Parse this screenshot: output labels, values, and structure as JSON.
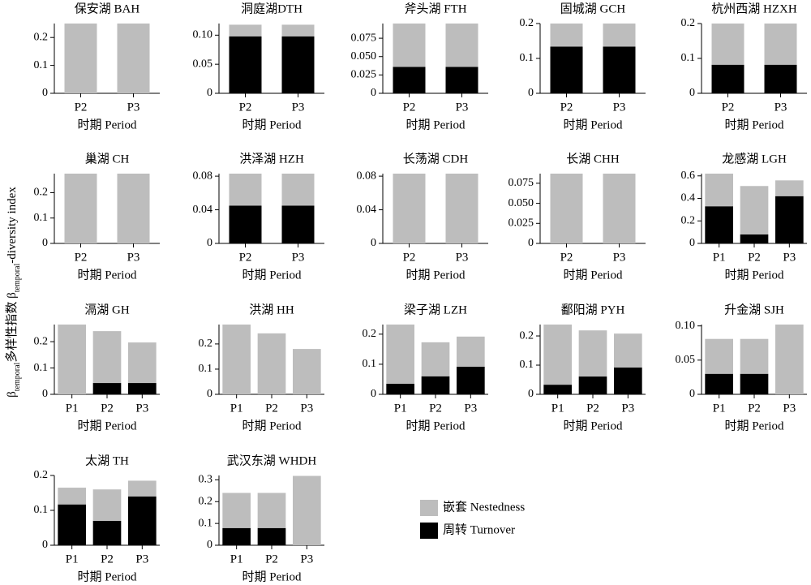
{
  "ylabel": [
    "β",
    "temporal",
    "多样性指数 β",
    "temporal",
    "-diversity index"
  ],
  "legend": [
    {
      "name": "嵌套 Nestedness",
      "color": "#bdbdbd"
    },
    {
      "name": "周转 Turnover",
      "color": "#000000"
    }
  ],
  "chart_data": [
    {
      "type": "bar",
      "title": "保安湖 BAH",
      "xlabel": "时期 Period",
      "categories": [
        "P2",
        "P3"
      ],
      "series": [
        {
          "values": [
            0.25,
            0.25
          ]
        },
        {
          "values": [
            0,
            0
          ]
        }
      ],
      "ylim": [
        0,
        0.25
      ],
      "yticks": [
        0,
        0.1,
        0.2
      ]
    },
    {
      "type": "bar",
      "title": "洞庭湖DTH",
      "xlabel": "时期 Period",
      "categories": [
        "P2",
        "P3"
      ],
      "series": [
        {
          "values": [
            0.02,
            0.02
          ]
        },
        {
          "values": [
            0.098,
            0.098
          ]
        }
      ],
      "ylim": [
        0,
        0.12
      ],
      "yticks": [
        0,
        0.05,
        {
          "value": 0.1,
          "label": "0.10"
        }
      ]
    },
    {
      "type": "bar",
      "title": "斧头湖 FTH",
      "xlabel": "时期 Period",
      "categories": [
        "P2",
        "P3"
      ],
      "series": [
        {
          "values": [
            0.059,
            0.059
          ]
        },
        {
          "values": [
            0.036,
            0.036
          ]
        }
      ],
      "ylim": [
        0,
        0.095
      ],
      "yticks": [
        0,
        0.025,
        {
          "value": 0.05,
          "label": "0.050"
        },
        0.075
      ]
    },
    {
      "type": "bar",
      "title": "固城湖 GCH",
      "xlabel": "时期 Period",
      "categories": [
        "P2",
        "P3"
      ],
      "series": [
        {
          "values": [
            0.066,
            0.066
          ]
        },
        {
          "values": [
            0.134,
            0.134
          ]
        }
      ],
      "ylim": [
        0,
        0.2
      ],
      "yticks": [
        0,
        0.1,
        0.2
      ]
    },
    {
      "type": "bar",
      "title": "杭州西湖 HZXH",
      "xlabel": "时期 Period",
      "categories": [
        "P2",
        "P3"
      ],
      "series": [
        {
          "values": [
            0.118,
            0.118
          ]
        },
        {
          "values": [
            0.082,
            0.082
          ]
        }
      ],
      "ylim": [
        0,
        0.2
      ],
      "yticks": [
        0,
        0.1,
        0.2
      ]
    },
    {
      "type": "bar",
      "title": "巢湖 CH",
      "xlabel": "时期 Period",
      "categories": [
        "P2",
        "P3"
      ],
      "series": [
        {
          "values": [
            0.275,
            0.275
          ]
        },
        {
          "values": [
            0,
            0
          ]
        }
      ],
      "ylim": [
        0,
        0.275
      ],
      "yticks": [
        0,
        0.1,
        0.2
      ]
    },
    {
      "type": "bar",
      "title": "洪泽湖 HZH",
      "xlabel": "时期 Period",
      "categories": [
        "P2",
        "P3"
      ],
      "series": [
        {
          "values": [
            0.038,
            0.038
          ]
        },
        {
          "values": [
            0.045,
            0.045
          ]
        }
      ],
      "ylim": [
        0,
        0.083
      ],
      "yticks": [
        0,
        0.04,
        0.08
      ]
    },
    {
      "type": "bar",
      "title": "长荡湖 CDH",
      "xlabel": "时期 Period",
      "categories": [
        "P2",
        "P3"
      ],
      "series": [
        {
          "values": [
            0.083,
            0.083
          ]
        },
        {
          "values": [
            0,
            0
          ]
        }
      ],
      "ylim": [
        0,
        0.083
      ],
      "yticks": [
        0,
        0.04,
        0.08
      ]
    },
    {
      "type": "bar",
      "title": "长湖 CHH",
      "xlabel": "时期 Period",
      "categories": [
        "P2",
        "P3"
      ],
      "series": [
        {
          "values": [
            0.087,
            0.087
          ]
        },
        {
          "values": [
            0,
            0
          ]
        }
      ],
      "ylim": [
        0,
        0.087
      ],
      "yticks": [
        0,
        0.025,
        {
          "value": 0.05,
          "label": "0.050"
        },
        0.075
      ]
    },
    {
      "type": "bar",
      "title": "龙感湖 LGH",
      "xlabel": "时期 Period",
      "categories": [
        "P1",
        "P2",
        "P3"
      ],
      "series": [
        {
          "values": [
            0.29,
            0.43,
            0.14
          ]
        },
        {
          "values": [
            0.33,
            0.08,
            0.42
          ]
        }
      ],
      "ylim": [
        0,
        0.62
      ],
      "yticks": [
        0,
        0.2,
        0.4,
        0.6
      ]
    },
    {
      "type": "bar",
      "title": "滆湖 GH",
      "xlabel": "时期 Period",
      "categories": [
        "P1",
        "P2",
        "P3"
      ],
      "series": [
        {
          "values": [
            0.265,
            0.197,
            0.154
          ]
        },
        {
          "values": [
            0,
            0.043,
            0.043
          ]
        }
      ],
      "ylim": [
        0,
        0.265
      ],
      "yticks": [
        0,
        0.1,
        0.2
      ]
    },
    {
      "type": "bar",
      "title": "洪湖 HH",
      "xlabel": "时期 Period",
      "categories": [
        "P1",
        "P2",
        "P3"
      ],
      "series": [
        {
          "values": [
            0.277,
            0.242,
            0.18
          ]
        },
        {
          "values": [
            0,
            0,
            0
          ]
        }
      ],
      "ylim": [
        0,
        0.277
      ],
      "yticks": [
        0,
        0.1,
        0.2
      ]
    },
    {
      "type": "bar",
      "title": "梁子湖 LZH",
      "xlabel": "时期 Period",
      "categories": [
        "P1",
        "P2",
        "P3"
      ],
      "series": [
        {
          "values": [
            0.197,
            0.113,
            0.1
          ]
        },
        {
          "values": [
            0.035,
            0.06,
            0.092
          ]
        }
      ],
      "ylim": [
        0,
        0.232
      ],
      "yticks": [
        0,
        0.1,
        0.2
      ]
    },
    {
      "type": "bar",
      "title": "鄱阳湖 PYH",
      "xlabel": "时期 Period",
      "categories": [
        "P1",
        "P2",
        "P3"
      ],
      "series": [
        {
          "values": [
            0.206,
            0.158,
            0.116
          ]
        },
        {
          "values": [
            0.033,
            0.061,
            0.092
          ]
        }
      ],
      "ylim": [
        0,
        0.239
      ],
      "yticks": [
        0,
        0.1,
        0.2
      ]
    },
    {
      "type": "bar",
      "title": "升金湖 SJH",
      "xlabel": "时期 Period",
      "categories": [
        "P1",
        "P2",
        "P3"
      ],
      "series": [
        {
          "values": [
            0.051,
            0.051,
            0.102
          ]
        },
        {
          "values": [
            0.03,
            0.03,
            0
          ]
        }
      ],
      "ylim": [
        0,
        0.102
      ],
      "yticks": [
        0,
        0.05,
        {
          "value": 0.1,
          "label": "0.10"
        }
      ]
    },
    {
      "type": "bar",
      "title": "太湖 TH",
      "xlabel": "时期 Period",
      "categories": [
        "P1",
        "P2",
        "P3"
      ],
      "series": [
        {
          "values": [
            0.048,
            0.09,
            0.045
          ]
        },
        {
          "values": [
            0.117,
            0.07,
            0.14
          ]
        }
      ],
      "ylim": [
        0,
        0.2
      ],
      "yticks": [
        0,
        0.1,
        0.2
      ]
    },
    {
      "type": "bar",
      "title": "武汉东湖 WHDH",
      "xlabel": "时期 Period",
      "categories": [
        "P1",
        "P2",
        "P3"
      ],
      "series": [
        {
          "values": [
            0.161,
            0.161,
            0.318
          ]
        },
        {
          "values": [
            0.079,
            0.079,
            0
          ]
        }
      ],
      "ylim": [
        0,
        0.32
      ],
      "yticks": [
        0,
        0.1,
        0.2,
        0.3
      ]
    }
  ]
}
